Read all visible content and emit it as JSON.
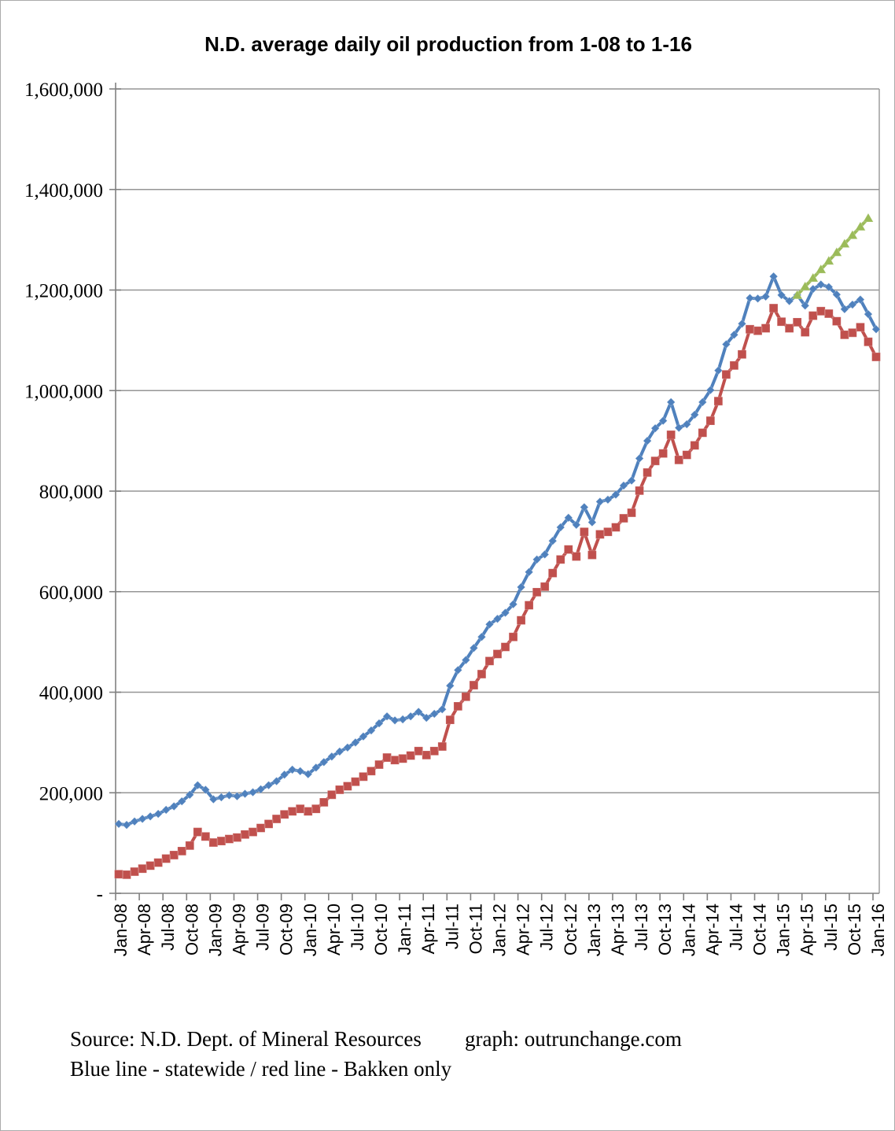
{
  "title": "N.D. average daily oil production from 1-08 to 1-16",
  "footer": {
    "source": "Source: N.D. Dept. of Mineral Resources",
    "credit": "graph: outrunchange.com",
    "legend": "Blue line - statewide  / red line - Bakken only"
  },
  "chart_data": {
    "type": "line",
    "title": "N.D. average daily oil production from 1-08 to 1-16",
    "x_unit": "month",
    "x_start": "Jan-08",
    "x_end": "Jan-16",
    "months_total": 97,
    "grid": true,
    "ylim": [
      0,
      1600000
    ],
    "y_tick_step": 200000,
    "y_tick_labels": [
      "-",
      "200,000",
      "400,000",
      "600,000",
      "800,000",
      "1,000,000",
      "1,200,000",
      "1,400,000",
      "1,600,000"
    ],
    "x_tick_every_months": 3,
    "x_tick_labels": [
      "Jan-08",
      "Apr-08",
      "Jul-08",
      "Oct-08",
      "Jan-09",
      "Apr-09",
      "Jul-09",
      "Oct-09",
      "Jan-10",
      "Apr-10",
      "Jul-10",
      "Oct-10",
      "Jan-11",
      "Apr-11",
      "Jul-11",
      "Oct-11",
      "Jan-12",
      "Apr-12",
      "Jul-12",
      "Oct-12",
      "Jan-13",
      "Apr-13",
      "Jul-13",
      "Oct-13",
      "Jan-14",
      "Apr-14",
      "Jul-14",
      "Oct-14",
      "Jan-15",
      "Apr-15",
      "Jul-15",
      "Oct-15",
      "Jan-16"
    ],
    "colors": {
      "statewide": "#4F81BD",
      "bakken": "#C0504D",
      "trend": "#9BBB59",
      "gridline": "#969696",
      "axis": "#808080"
    },
    "series": [
      {
        "name": "statewide",
        "color": "#4F81BD",
        "marker": "diamond",
        "start_index": 0,
        "values": [
          138000,
          136000,
          143000,
          148000,
          153000,
          158000,
          166000,
          173000,
          183000,
          196000,
          215000,
          206000,
          187000,
          191000,
          195000,
          193000,
          198000,
          201000,
          207000,
          215000,
          223000,
          236000,
          246000,
          243000,
          237000,
          250000,
          261000,
          272000,
          282000,
          290000,
          300000,
          312000,
          324000,
          338000,
          352000,
          344000,
          346000,
          352000,
          361000,
          349000,
          357000,
          366000,
          413000,
          444000,
          464000,
          488000,
          510000,
          535000,
          546000,
          558000,
          575000,
          609000,
          639000,
          664000,
          674000,
          701000,
          728000,
          747000,
          733000,
          768000,
          738000,
          779000,
          783000,
          793000,
          811000,
          821000,
          865000,
          900000,
          925000,
          940000,
          977000,
          926000,
          933000,
          952000,
          977000,
          1001000,
          1040000,
          1092000,
          1111000,
          1133000,
          1184000,
          1183000,
          1187000,
          1227000,
          1190000,
          1178000,
          1190000,
          1169000,
          1202000,
          1211000,
          1206000,
          1191000,
          1162000,
          1171000,
          1181000,
          1152000,
          1122000
        ]
      },
      {
        "name": "Bakken only",
        "color": "#C0504D",
        "marker": "square",
        "start_index": 0,
        "values": [
          38000,
          37000,
          43000,
          49000,
          55000,
          61000,
          69000,
          76000,
          84000,
          95000,
          122000,
          113000,
          101000,
          104000,
          108000,
          111000,
          117000,
          122000,
          130000,
          138000,
          148000,
          157000,
          163000,
          168000,
          163000,
          168000,
          181000,
          196000,
          206000,
          213000,
          222000,
          232000,
          243000,
          256000,
          270000,
          265000,
          268000,
          274000,
          283000,
          275000,
          283000,
          292000,
          345000,
          372000,
          391000,
          414000,
          436000,
          462000,
          476000,
          490000,
          510000,
          543000,
          573000,
          599000,
          610000,
          637000,
          664000,
          684000,
          670000,
          719000,
          673000,
          714000,
          719000,
          728000,
          746000,
          757000,
          801000,
          837000,
          860000,
          875000,
          912000,
          862000,
          872000,
          891000,
          916000,
          940000,
          979000,
          1032000,
          1050000,
          1072000,
          1122000,
          1119000,
          1124000,
          1164000,
          1137000,
          1124000,
          1136000,
          1116000,
          1149000,
          1158000,
          1153000,
          1138000,
          1111000,
          1115000,
          1126000,
          1097000,
          1067000
        ]
      },
      {
        "name": "trend projection",
        "color": "#9BBB59",
        "marker": "triangle",
        "start_index": 86,
        "values": [
          1190000,
          1207000,
          1224000,
          1241000,
          1258000,
          1275000,
          1292000,
          1309000,
          1326000,
          1343000
        ]
      }
    ]
  }
}
